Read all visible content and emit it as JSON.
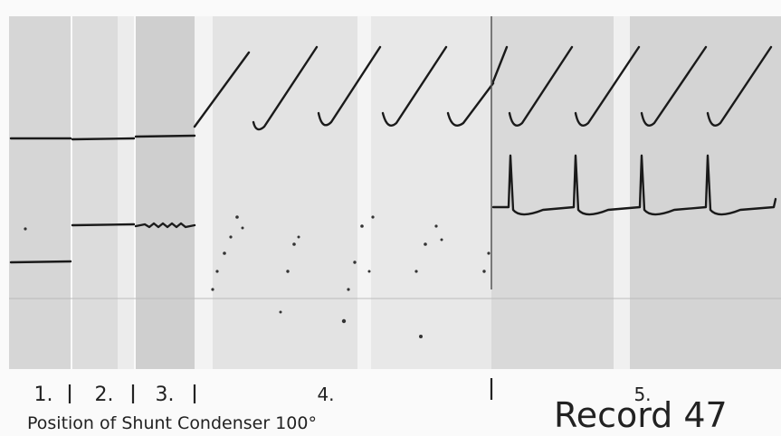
{
  "sections": [
    {
      "label": "1."
    },
    {
      "label": "2."
    },
    {
      "label": "3."
    },
    {
      "label": "4."
    },
    {
      "label": "5."
    }
  ],
  "caption": "Position of Shunt Condenser 100°",
  "record": "Record 47"
}
